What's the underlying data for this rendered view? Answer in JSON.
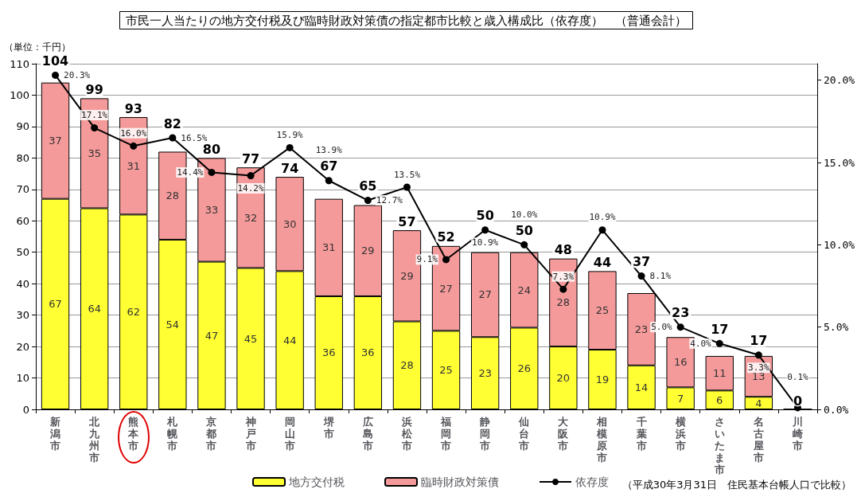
{
  "chart_data": {
    "type": "bar",
    "stacked": true,
    "title": "市民一人当たりの地方交付税及び臨時財政対策債の指定都市比較と歳入構成比（依存度）　（普通会計）",
    "ylabel": "（単位：千円）",
    "annotations": [
      "（平成30年3月31日　住民基本台帳人口で比較）"
    ],
    "categories": [
      "新潟市",
      "北九州市",
      "熊本市",
      "札幌市",
      "京都市",
      "神戸市",
      "岡山市",
      "堺市",
      "広島市",
      "浜松市",
      "福岡市",
      "静岡市",
      "仙台市",
      "大阪市",
      "相模原市",
      "千葉市",
      "横浜市",
      "さいたま市",
      "名古屋市",
      "川崎市"
    ],
    "series": [
      {
        "name": "地方交付税",
        "color": "#ffff33",
        "values": [
          67,
          64,
          62,
          54,
          47,
          45,
          44,
          36,
          36,
          28,
          25,
          23,
          26,
          20,
          19,
          14,
          7,
          6,
          4,
          0
        ],
        "value_labels": [
          "67",
          "64",
          "62",
          "54",
          "47",
          "45",
          "44",
          "36",
          "36",
          "28",
          "25",
          "23",
          "26",
          "20",
          "19",
          "14",
          "7",
          "6",
          "4",
          null
        ]
      },
      {
        "name": "臨時財政対策債",
        "color": "#f59a9a",
        "values": [
          37,
          35,
          31,
          28,
          33,
          32,
          30,
          31,
          29,
          29,
          27,
          27,
          24,
          28,
          25,
          23,
          16,
          11,
          13,
          0
        ],
        "value_labels": [
          "37",
          "35",
          "31",
          "28",
          "33",
          "32",
          "30",
          "31",
          "29",
          "29",
          "27",
          "27",
          "24",
          "28",
          "25",
          "23",
          "16",
          "11",
          "13",
          null
        ]
      },
      {
        "name": "依存度",
        "type": "line",
        "axis": "y2",
        "color": "#000000",
        "marker": "circle",
        "values": [
          20.3,
          17.1,
          16.0,
          16.5,
          14.4,
          14.2,
          15.9,
          13.9,
          12.7,
          13.5,
          9.1,
          10.9,
          10.0,
          7.3,
          10.9,
          8.1,
          5.0,
          4.0,
          3.3,
          0.1
        ],
        "value_labels": [
          "20.3%",
          "17.1%",
          "16.0%",
          "16.5%",
          "14.4%",
          "14.2%",
          "15.9%",
          "13.9%",
          "12.7%",
          "13.5%",
          "9.1%",
          "10.9%",
          "10.0%",
          "7.3%",
          "10.9%",
          "8.1%",
          "5.0%",
          "4.0%",
          "3.3%",
          "0.1%"
        ]
      }
    ],
    "totals": [
      "104",
      "99",
      "93",
      "82",
      "80",
      "77",
      "74",
      "67",
      "65",
      "57",
      "52",
      "50",
      "50",
      "48",
      "44",
      "37",
      "23",
      "17",
      "17",
      "0"
    ],
    "ylim": [
      0,
      110
    ],
    "yticks": [
      0,
      10,
      20,
      30,
      40,
      50,
      60,
      70,
      80,
      90,
      100,
      110
    ],
    "y2lim": [
      0,
      21
    ],
    "y2ticks": [
      {
        "value": 0,
        "label": "0.0%"
      },
      {
        "value": 5,
        "label": "5.0%"
      },
      {
        "value": 10,
        "label": "10.0%"
      },
      {
        "value": 15,
        "label": "15.0%"
      },
      {
        "value": 20,
        "label": "20.0%"
      }
    ],
    "grid": "y",
    "legend": "bottom"
  }
}
